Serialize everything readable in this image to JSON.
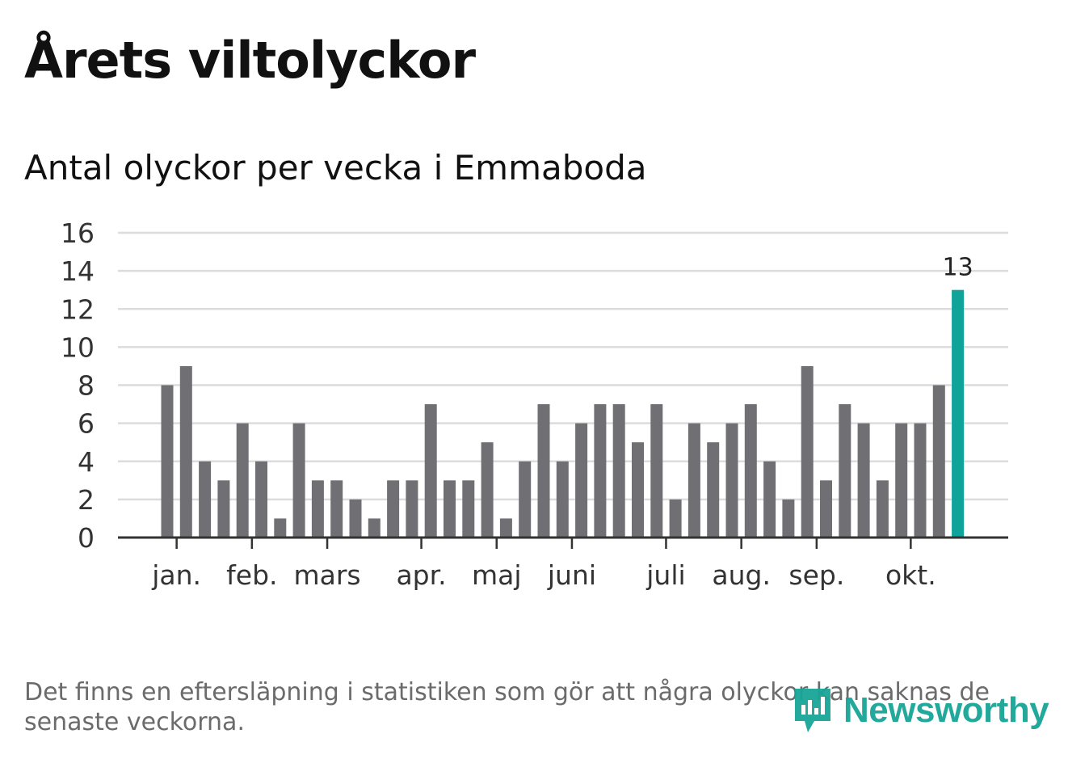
{
  "header": {
    "title": "Årets viltolyckor",
    "subtitle": "Antal olyckor per vecka i Emmaboda"
  },
  "footnote": "Det finns en eftersläpning i statistiken som gör att några olyckor kan saknas de senaste veckorna.",
  "logo": {
    "text": "Newsworthy",
    "icon": "newsworthy-logo-icon"
  },
  "colors": {
    "bar": "#706f74",
    "highlight": "#0fa39a",
    "grid": "#dcdcdc",
    "axis": "#333333",
    "logo": "#17a597"
  },
  "chart_data": {
    "type": "bar",
    "title": "Antal olyckor per vecka i Emmaboda",
    "xlabel": "",
    "ylabel": "",
    "ylim": [
      0,
      16
    ],
    "yticks": [
      0,
      2,
      4,
      6,
      8,
      10,
      12,
      14,
      16
    ],
    "grid": true,
    "values": [
      8,
      9,
      4,
      3,
      6,
      4,
      1,
      6,
      3,
      3,
      2,
      1,
      3,
      3,
      7,
      3,
      3,
      5,
      1,
      4,
      7,
      4,
      6,
      7,
      7,
      5,
      7,
      2,
      6,
      5,
      6,
      7,
      4,
      2,
      9,
      3,
      7,
      6,
      3,
      6,
      6,
      8,
      13
    ],
    "highlight_index": 42,
    "highlight_label": "13",
    "month_labels": [
      {
        "label": "jan.",
        "position": 0.5
      },
      {
        "label": "feb.",
        "position": 4.5
      },
      {
        "label": "mars",
        "position": 8.5
      },
      {
        "label": "apr.",
        "position": 13.5
      },
      {
        "label": "maj",
        "position": 17.5
      },
      {
        "label": "juni",
        "position": 21.5
      },
      {
        "label": "juli",
        "position": 26.5
      },
      {
        "label": "aug.",
        "position": 30.5
      },
      {
        "label": "sep.",
        "position": 34.5
      },
      {
        "label": "okt.",
        "position": 39.5
      }
    ]
  }
}
